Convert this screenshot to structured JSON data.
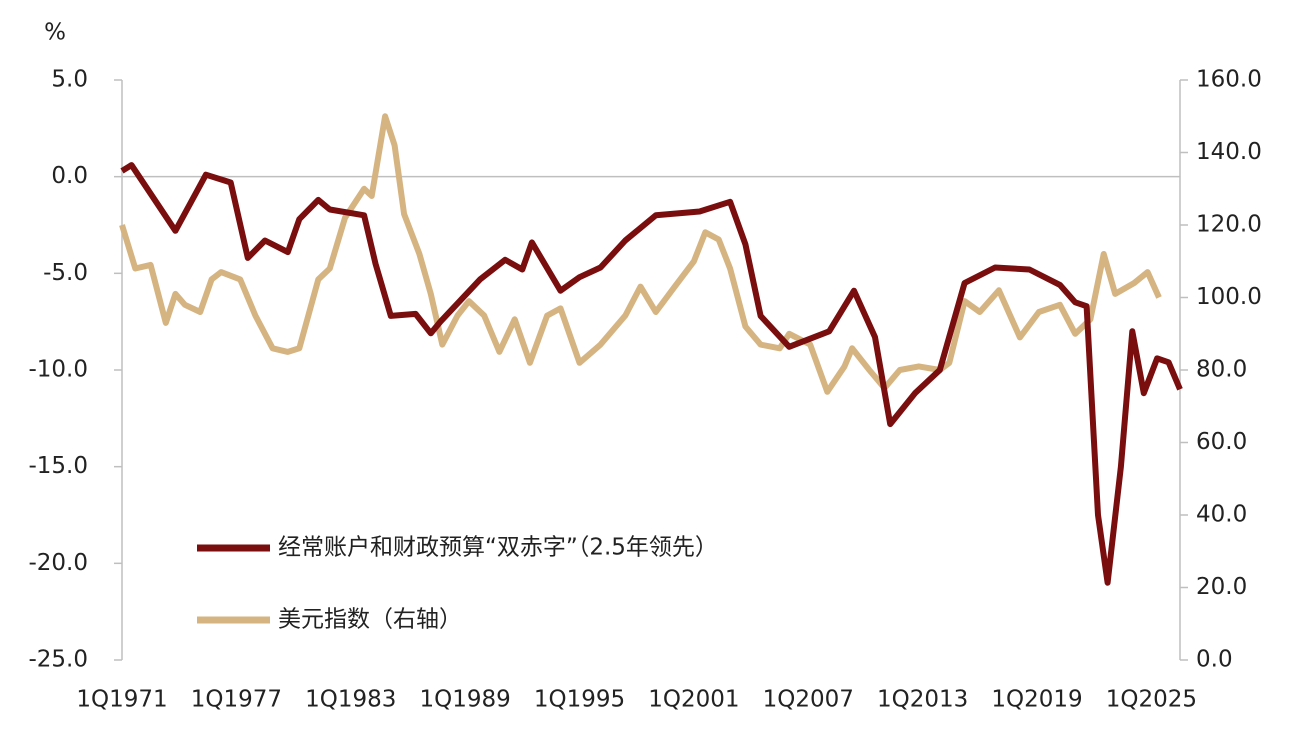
{
  "chart_data": {
    "type": "line",
    "y_label": "%",
    "xlim": [
      1971,
      2026.5
    ],
    "xticks": [
      {
        "value": 1971,
        "label": "1Q1971"
      },
      {
        "value": 1977,
        "label": "1Q1977"
      },
      {
        "value": 1983,
        "label": "1Q1983"
      },
      {
        "value": 1989,
        "label": "1Q1989"
      },
      {
        "value": 1995,
        "label": "1Q1995"
      },
      {
        "value": 2001,
        "label": "1Q2001"
      },
      {
        "value": 2007,
        "label": "1Q2007"
      },
      {
        "value": 2013,
        "label": "1Q2013"
      },
      {
        "value": 2019,
        "label": "1Q2019"
      },
      {
        "value": 2025,
        "label": "1Q2025"
      }
    ],
    "ylim": [
      -25,
      5
    ],
    "yticks": [
      {
        "value": -25,
        "label": "-25.0"
      },
      {
        "value": -20,
        "label": "-20.0"
      },
      {
        "value": -15,
        "label": "-15.0"
      },
      {
        "value": -10,
        "label": "-10.0"
      },
      {
        "value": -5,
        "label": "-5.0"
      },
      {
        "value": 0,
        "label": "0.0"
      },
      {
        "value": 5,
        "label": "5.0"
      }
    ],
    "y2lim": [
      0,
      160
    ],
    "y2ticks": [
      {
        "value": 0,
        "label": "0.0"
      },
      {
        "value": 20,
        "label": "20.0"
      },
      {
        "value": 40,
        "label": "40.0"
      },
      {
        "value": 60,
        "label": "60.0"
      },
      {
        "value": 80,
        "label": "80.0"
      },
      {
        "value": 100,
        "label": "100.0"
      },
      {
        "value": 120,
        "label": "120.0"
      },
      {
        "value": 140,
        "label": "140.0"
      },
      {
        "value": 160,
        "label": "160.0"
      }
    ],
    "series": [
      {
        "name": "经常账户和财政预算“双赤字”（2.5年领先）",
        "color": "#7a0e0e",
        "x": [
          1971.0,
          1971.5,
          1973.8,
          1975.4,
          1976.7,
          1977.6,
          1978.5,
          1979.7,
          1980.3,
          1981.3,
          1981.9,
          1983.7,
          1984.3,
          1985.1,
          1986.4,
          1987.2,
          1987.7,
          1989.8,
          1991.1,
          1992.0,
          1992.5,
          1994.0,
          1995.0,
          1996.1,
          1997.4,
          1999.0,
          2001.3,
          2002.9,
          2003.7,
          2004.5,
          2006.0,
          2008.1,
          2009.4,
          2010.5,
          2011.3,
          2012.6,
          2013.9,
          2015.2,
          2016.8,
          2018.6,
          2020.2,
          2021.0,
          2021.6,
          2022.2,
          2022.7,
          2023.4,
          2024.0,
          2024.6,
          2025.3,
          2025.9,
          2026.5
        ],
        "values": [
          0.3,
          0.6,
          -2.8,
          0.1,
          -0.3,
          -4.2,
          -3.3,
          -3.9,
          -2.2,
          -1.2,
          -1.7,
          -2.0,
          -4.5,
          -7.2,
          -7.1,
          -8.1,
          -7.5,
          -5.3,
          -4.3,
          -4.8,
          -3.4,
          -5.9,
          -5.2,
          -4.7,
          -3.3,
          -2.0,
          -1.8,
          -1.3,
          -3.5,
          -7.2,
          -8.8,
          -8.0,
          -5.9,
          -8.3,
          -12.8,
          -11.2,
          -10.0,
          -5.5,
          -4.7,
          -4.8,
          -5.6,
          -6.5,
          -6.7,
          -17.5,
          -21.0,
          -15.0,
          -8.0,
          -11.2,
          -9.4,
          -9.6,
          -11.0
        ]
      },
      {
        "name": "美元指数（右轴）",
        "color": "#d6b482",
        "axis": "y2",
        "x": [
          1971.0,
          1971.7,
          1972.5,
          1973.3,
          1973.8,
          1974.3,
          1975.1,
          1975.7,
          1976.2,
          1977.2,
          1978.0,
          1978.9,
          1979.7,
          1980.3,
          1981.3,
          1981.9,
          1982.7,
          1983.7,
          1984.1,
          1984.8,
          1985.3,
          1985.8,
          1986.6,
          1987.2,
          1987.8,
          1988.6,
          1989.2,
          1990.0,
          1990.8,
          1991.6,
          1992.4,
          1993.3,
          1994.0,
          1995.0,
          1996.1,
          1997.4,
          1998.2,
          1999.0,
          2000.0,
          2001.0,
          2001.6,
          2002.3,
          2002.9,
          2003.7,
          2004.5,
          2005.5,
          2006.0,
          2007.1,
          2008.0,
          2008.9,
          2009.3,
          2010.2,
          2011.0,
          2011.8,
          2012.8,
          2013.9,
          2014.4,
          2015.2,
          2016.0,
          2017.0,
          2018.1,
          2019.1,
          2020.2,
          2021.0,
          2021.8,
          2022.5,
          2023.1,
          2024.1,
          2024.8,
          2025.4
        ],
        "values": [
          120,
          108,
          109,
          93,
          101,
          98,
          96,
          105,
          107,
          105,
          95,
          86,
          85,
          86,
          105,
          108,
          122,
          130,
          128,
          150,
          142,
          123,
          112,
          101,
          87,
          95,
          99,
          95,
          85,
          94,
          82,
          95,
          97,
          82,
          87,
          95,
          103,
          96,
          103,
          110,
          118,
          116,
          108,
          92,
          87,
          86,
          90,
          87,
          74,
          81,
          86,
          80,
          75,
          80,
          81,
          80,
          82,
          99,
          96,
          102,
          89,
          96,
          98,
          90,
          94,
          112,
          101,
          104,
          107,
          100
        ]
      }
    ]
  }
}
